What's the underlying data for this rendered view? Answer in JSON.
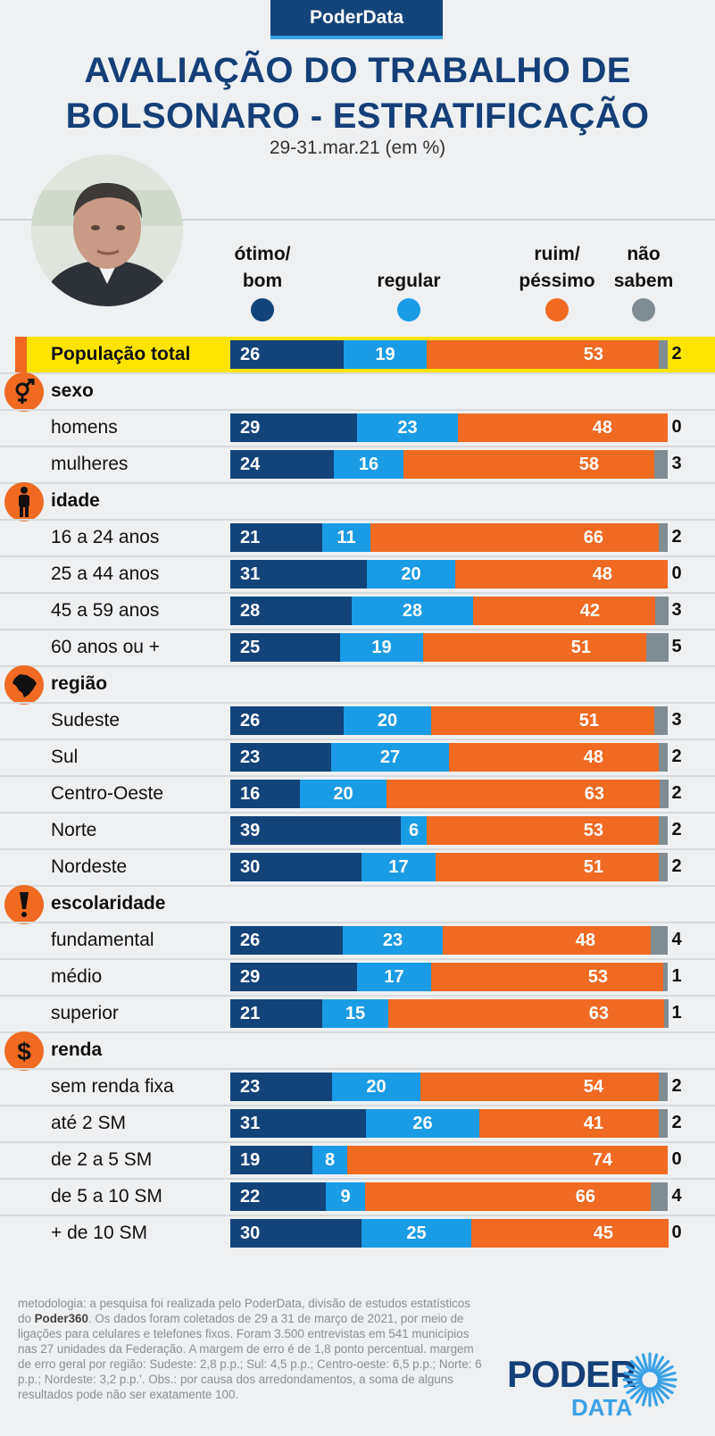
{
  "badge": "PoderData",
  "title_line1": "AVALIAÇÃO DO TRABALHO DE",
  "title_line2": "BOLSONARO - ESTRATIFICAÇÃO",
  "subtitle": "29-31.mar.21 (em %)",
  "colors": {
    "otimo_bom": "#12447a",
    "regular": "#1a9be6",
    "ruim_pessimo": "#f06a21",
    "nao_sabem": "#7f8c93",
    "highlight": "#ffe400"
  },
  "legend": [
    {
      "key": "otimo_bom",
      "line1": "ótimo/",
      "line2": "bom"
    },
    {
      "key": "regular",
      "line1": "",
      "line2": "regular"
    },
    {
      "key": "ruim_pessimo",
      "line1": "ruim/",
      "line2": "péssimo"
    },
    {
      "key": "nao_sabem",
      "line1": "não",
      "line2": "sabem"
    }
  ],
  "chart_data": {
    "type": "bar",
    "stacked": true,
    "orientation": "horizontal",
    "title": "AVALIAÇÃO DO TRABALHO DE BOLSONARO - ESTRATIFICAÇÃO",
    "subtitle": "29-31.mar.21 (em %)",
    "series_names": [
      "ótimo/ bom",
      "regular",
      "ruim/ péssimo",
      "não sabem"
    ],
    "rows": [
      {
        "kind": "total",
        "label": "População total",
        "values": [
          26,
          19,
          53,
          2
        ]
      },
      {
        "kind": "category",
        "label": "sexo",
        "icon": "gender-icon"
      },
      {
        "kind": "data",
        "label": "homens",
        "values": [
          29,
          23,
          48,
          0
        ]
      },
      {
        "kind": "data",
        "label": "mulheres",
        "values": [
          24,
          16,
          58,
          3
        ]
      },
      {
        "kind": "category",
        "label": "idade",
        "icon": "person-icon"
      },
      {
        "kind": "data",
        "label": "16 a 24 anos",
        "values": [
          21,
          11,
          66,
          2
        ]
      },
      {
        "kind": "data",
        "label": "25 a 44 anos",
        "values": [
          31,
          20,
          48,
          0
        ]
      },
      {
        "kind": "data",
        "label": "45 a 59 anos",
        "values": [
          28,
          28,
          42,
          3
        ]
      },
      {
        "kind": "data",
        "label": "60 anos ou +",
        "values": [
          25,
          19,
          51,
          5
        ]
      },
      {
        "kind": "category",
        "label": "região",
        "icon": "brazil-map-icon"
      },
      {
        "kind": "data",
        "label": "Sudeste",
        "values": [
          26,
          20,
          51,
          3
        ]
      },
      {
        "kind": "data",
        "label": "Sul",
        "values": [
          23,
          27,
          48,
          2
        ]
      },
      {
        "kind": "data",
        "label": "Centro-Oeste",
        "values": [
          16,
          20,
          63,
          2
        ]
      },
      {
        "kind": "data",
        "label": "Norte",
        "values": [
          39,
          6,
          53,
          2
        ]
      },
      {
        "kind": "data",
        "label": "Nordeste",
        "values": [
          30,
          17,
          51,
          2
        ]
      },
      {
        "kind": "category",
        "label": "escolaridade",
        "icon": "exclamation-icon"
      },
      {
        "kind": "data",
        "label": "fundamental",
        "values": [
          26,
          23,
          48,
          4
        ]
      },
      {
        "kind": "data",
        "label": "médio",
        "values": [
          29,
          17,
          53,
          1
        ]
      },
      {
        "kind": "data",
        "label": "superior",
        "values": [
          21,
          15,
          63,
          1
        ]
      },
      {
        "kind": "category",
        "label": "renda",
        "icon": "dollar-icon"
      },
      {
        "kind": "data",
        "label": "sem renda fixa",
        "values": [
          23,
          20,
          54,
          2
        ]
      },
      {
        "kind": "data",
        "label": "até 2 SM",
        "values": [
          31,
          26,
          41,
          2
        ]
      },
      {
        "kind": "data",
        "label": "de 2 a 5 SM",
        "values": [
          19,
          8,
          74,
          0
        ]
      },
      {
        "kind": "data",
        "label": "de 5 a 10 SM",
        "values": [
          22,
          9,
          66,
          4
        ]
      },
      {
        "kind": "data",
        "label": "+ de 10 SM",
        "values": [
          30,
          25,
          45,
          0
        ]
      }
    ]
  },
  "methodology": {
    "part1": "metodologia: a pesquisa foi realizada pelo PoderData, divisão de estudos estatísticos do ",
    "brand": "Poder360",
    "part2": ". Os dados foram coletados de 29 a 31 de março de 2021, por meio de ligações para celulares e telefones fixos. Foram 3.500 entrevistas em 541 municípios nas 27 unidades da Federação. A margem de erro é de 1,8 ponto percentual. margem de erro geral por região: Sudeste: 2,8 p.p.; Sul: 4,5 p.p.; Centro-oeste: 6,5 p.p.; Norte: 6 p.p.; Nordeste: 3,2 p.p.'. Obs.: por causa dos arredondamentos, a soma de alguns resultados pode não ser exatamente 100."
  },
  "logo": {
    "line1": "PODER",
    "line2": "DATA"
  }
}
